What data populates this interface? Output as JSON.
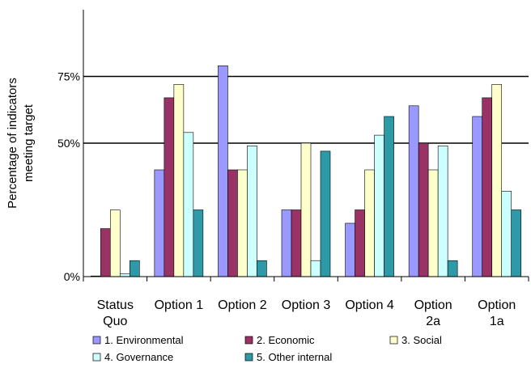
{
  "chart_data": {
    "type": "bar",
    "title": "",
    "ylabel_lines": [
      "Percentage of indicators",
      "meeting target"
    ],
    "ylim": [
      0,
      100
    ],
    "yticks": [
      {
        "value": 0,
        "label": "0%"
      },
      {
        "value": 50,
        "label": "50%"
      },
      {
        "value": 75,
        "label": "75%"
      }
    ],
    "reference_lines": [
      50,
      75
    ],
    "grid": false,
    "legend_position": "bottom",
    "categories": [
      {
        "lines": [
          "Status",
          "Quo"
        ]
      },
      {
        "lines": [
          "Option 1"
        ]
      },
      {
        "lines": [
          "Option 2"
        ]
      },
      {
        "lines": [
          "Option 3"
        ]
      },
      {
        "lines": [
          "Option 4"
        ]
      },
      {
        "lines": [
          "Option",
          "2a"
        ]
      },
      {
        "lines": [
          "Option",
          "1a"
        ]
      }
    ],
    "series": [
      {
        "name": "1. Environmental",
        "color": "#9999ff",
        "values": [
          0,
          40,
          79,
          25,
          20,
          64,
          60
        ]
      },
      {
        "name": "2. Economic",
        "color": "#993366",
        "values": [
          18,
          67,
          40,
          25,
          25,
          50,
          67
        ]
      },
      {
        "name": "3. Social",
        "color": "#ffffcc",
        "values": [
          25,
          72,
          40,
          50,
          40,
          40,
          72
        ]
      },
      {
        "name": "4. Governance",
        "color": "#ccffff",
        "values": [
          1,
          54,
          49,
          6,
          53,
          49,
          32
        ]
      },
      {
        "name": "5. Other internal",
        "color": "#2e9aa8",
        "values": [
          6,
          25,
          6,
          47,
          60,
          6,
          25
        ]
      }
    ]
  }
}
